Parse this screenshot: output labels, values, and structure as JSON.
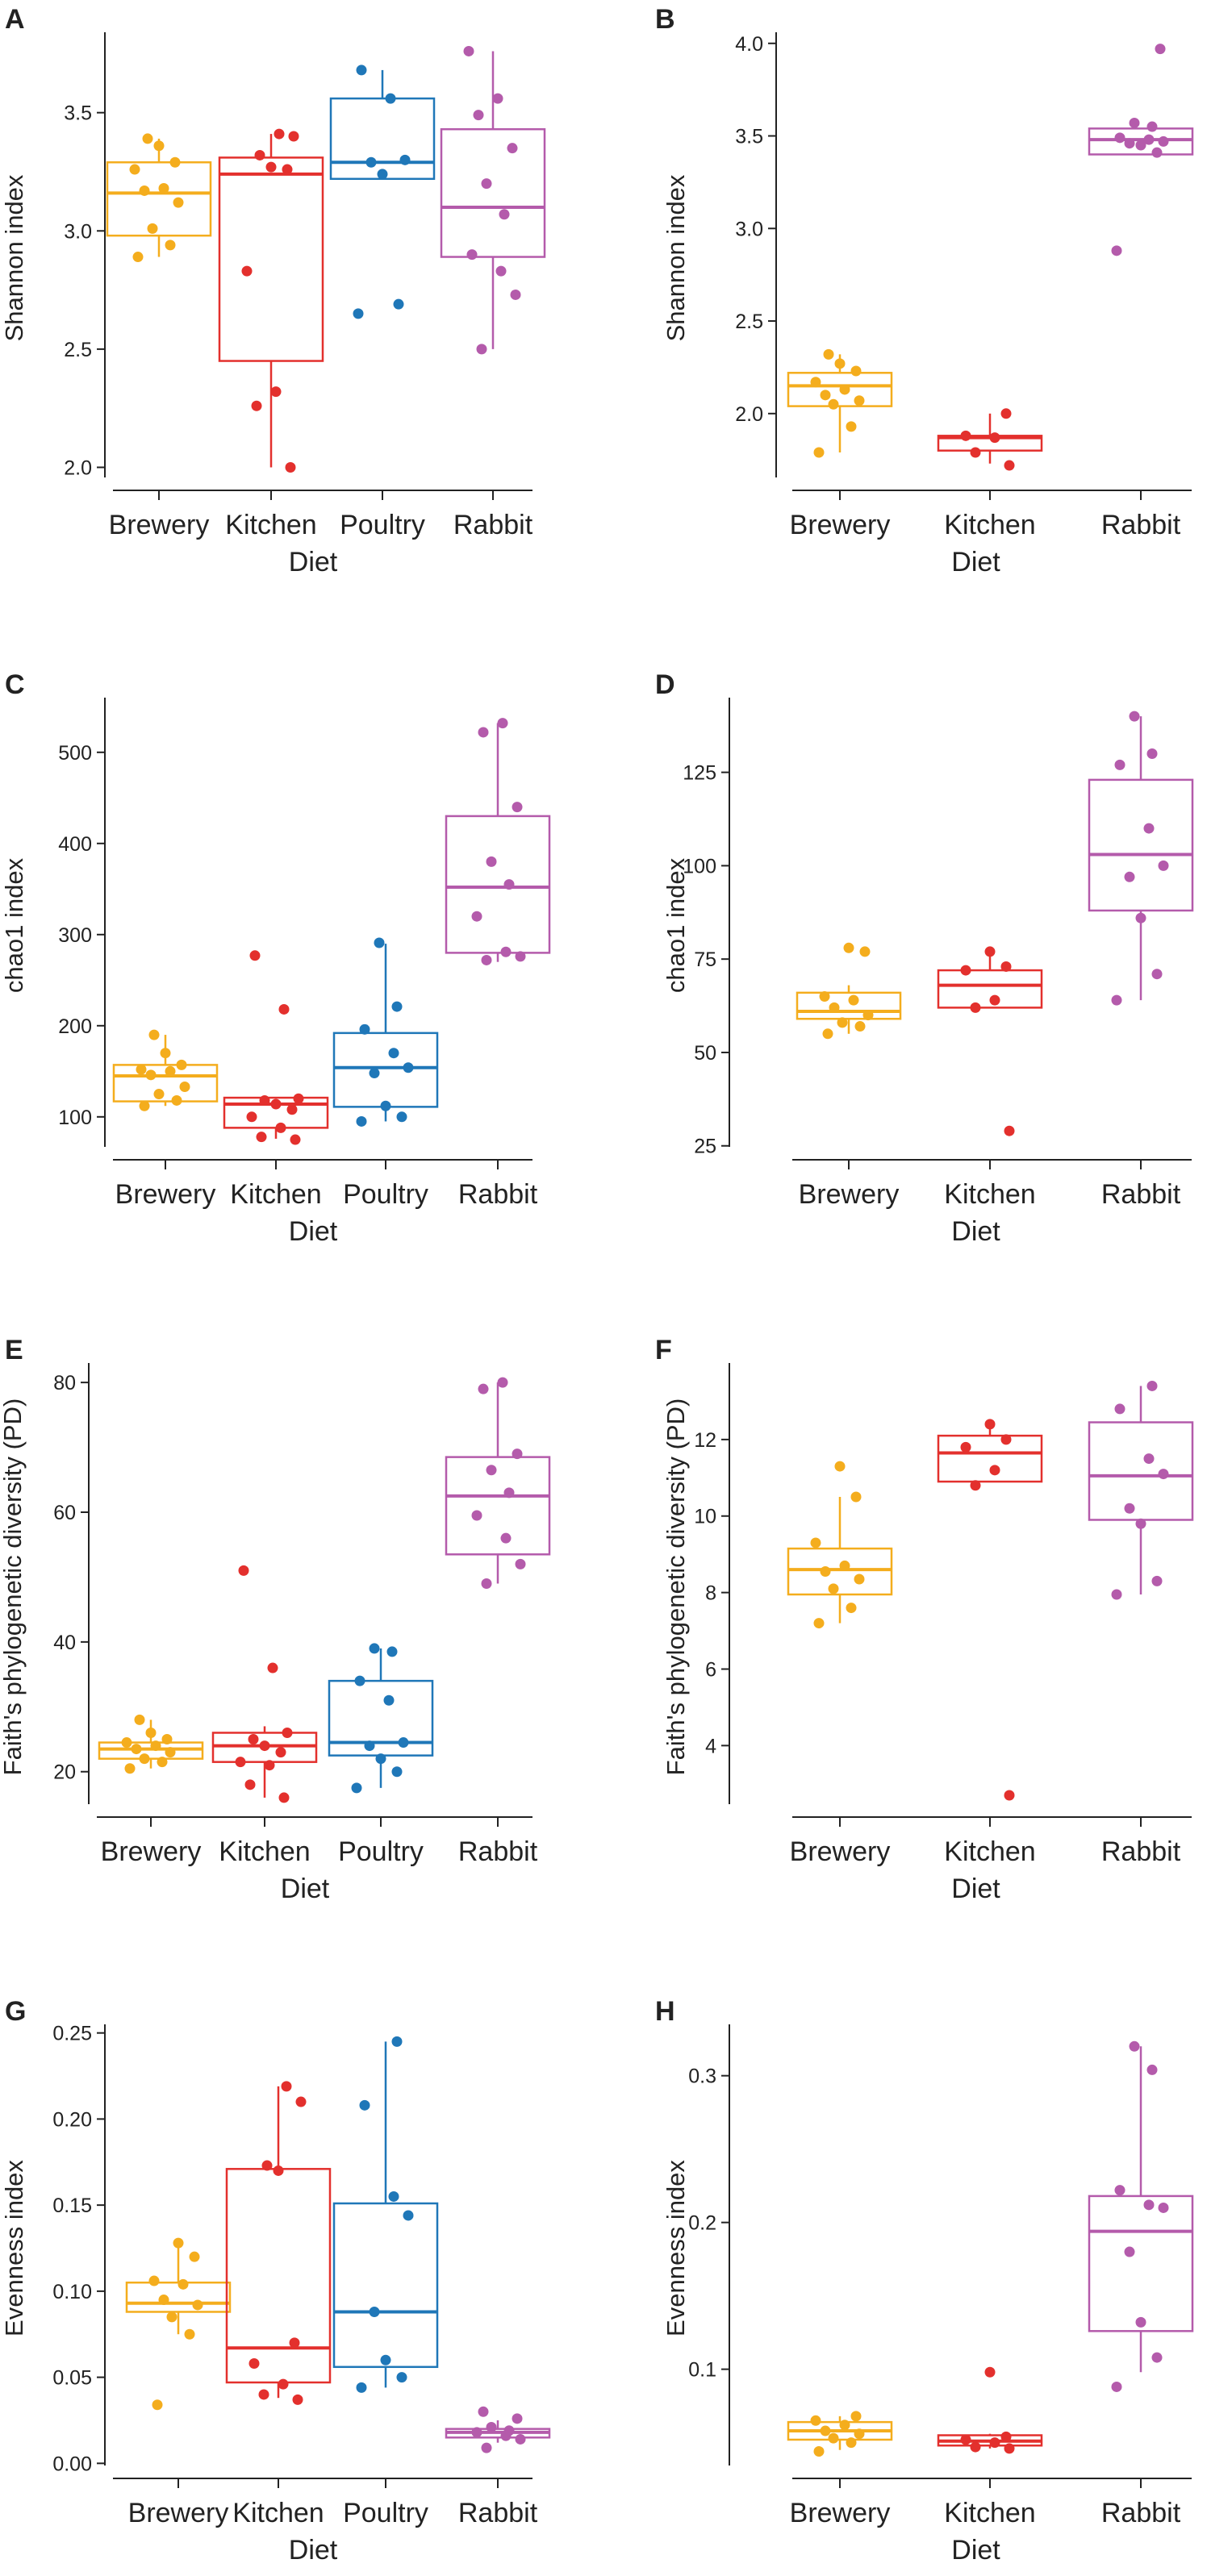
{
  "colors": {
    "Brewery": "#f4ad1d",
    "Kitchen": "#e3302d",
    "Poultry": "#1f77b8",
    "Rabbit": "#b45bab",
    "axis": "#222222"
  },
  "chart_data": [
    {
      "id": "A",
      "letter": "A",
      "type": "box",
      "title": "",
      "xlabel": "Diet",
      "ylabel": "Shannon index",
      "ylim": [
        1.93,
        3.84
      ],
      "yticks": [
        2.0,
        2.5,
        3.0,
        3.5
      ],
      "ytick_labels": [
        "2.0",
        "2.5",
        "3.0",
        "3.5"
      ],
      "categories": [
        "Brewery",
        "Kitchen",
        "Poultry",
        "Rabbit"
      ],
      "boxes": [
        {
          "group": "Brewery",
          "q1": 2.98,
          "median": 3.16,
          "q3": 3.29,
          "whisker_low": 2.89,
          "whisker_high": 3.39,
          "points": [
            2.89,
            2.94,
            3.01,
            3.12,
            3.17,
            3.18,
            3.26,
            3.29,
            3.36,
            3.39
          ]
        },
        {
          "group": "Kitchen",
          "q1": 2.45,
          "median": 3.24,
          "q3": 3.31,
          "whisker_low": 2.0,
          "whisker_high": 3.41,
          "points": [
            2.0,
            2.26,
            2.32,
            2.83,
            3.26,
            3.27,
            3.32,
            3.4,
            3.41
          ]
        },
        {
          "group": "Poultry",
          "q1": 3.22,
          "median": 3.29,
          "q3": 3.56,
          "whisker_low": 3.22,
          "whisker_high": 3.68,
          "points": [
            2.65,
            2.69,
            3.24,
            3.29,
            3.3,
            3.56,
            3.68
          ]
        },
        {
          "group": "Rabbit",
          "q1": 2.89,
          "median": 3.1,
          "q3": 3.43,
          "whisker_low": 2.5,
          "whisker_high": 3.76,
          "points": [
            2.5,
            2.73,
            2.83,
            2.9,
            3.07,
            3.2,
            3.35,
            3.49,
            3.56,
            3.76
          ]
        }
      ]
    },
    {
      "id": "B",
      "letter": "B",
      "type": "box",
      "title": "",
      "xlabel": "Diet",
      "ylabel": "Shannon index",
      "ylim": [
        1.62,
        4.06
      ],
      "yticks": [
        2.0,
        2.5,
        3.0,
        3.5,
        4.0
      ],
      "ytick_labels": [
        "2.0",
        "2.5",
        "3.0",
        "3.5",
        "4.0"
      ],
      "categories": [
        "Brewery",
        "Kitchen",
        "Rabbit"
      ],
      "boxes": [
        {
          "group": "Brewery",
          "q1": 2.04,
          "median": 2.15,
          "q3": 2.22,
          "whisker_low": 1.79,
          "whisker_high": 2.32,
          "points": [
            1.79,
            1.93,
            2.05,
            2.07,
            2.1,
            2.13,
            2.17,
            2.23,
            2.27,
            2.32
          ]
        },
        {
          "group": "Kitchen",
          "q1": 1.8,
          "median": 1.87,
          "q3": 1.88,
          "whisker_low": 1.73,
          "whisker_high": 2.0,
          "points": [
            1.72,
            1.79,
            1.87,
            1.88,
            2.0
          ]
        },
        {
          "group": "Rabbit",
          "q1": 3.4,
          "median": 3.48,
          "q3": 3.54,
          "whisker_low": 3.4,
          "whisker_high": 3.54,
          "points": [
            2.88,
            3.41,
            3.45,
            3.46,
            3.47,
            3.48,
            3.49,
            3.55,
            3.57,
            3.97
          ]
        }
      ]
    },
    {
      "id": "C",
      "letter": "C",
      "type": "box",
      "title": "",
      "xlabel": "Diet",
      "ylabel": "chao1 index",
      "ylim": [
        60,
        560
      ],
      "yticks": [
        100,
        200,
        300,
        400,
        500
      ],
      "ytick_labels": [
        "100",
        "200",
        "300",
        "400",
        "500"
      ],
      "categories": [
        "Brewery",
        "Kitchen",
        "Poultry",
        "Rabbit"
      ],
      "boxes": [
        {
          "group": "Brewery",
          "q1": 117,
          "median": 145,
          "q3": 157,
          "whisker_low": 112,
          "whisker_high": 190,
          "points": [
            112,
            118,
            125,
            133,
            146,
            150,
            152,
            157,
            170,
            190
          ]
        },
        {
          "group": "Kitchen",
          "q1": 88,
          "median": 114,
          "q3": 121,
          "whisker_low": 76,
          "whisker_high": 121,
          "points": [
            75,
            78,
            88,
            100,
            108,
            114,
            118,
            120,
            218,
            277
          ]
        },
        {
          "group": "Poultry",
          "q1": 111,
          "median": 154,
          "q3": 192,
          "whisker_low": 95,
          "whisker_high": 290,
          "points": [
            95,
            100,
            112,
            148,
            154,
            170,
            196,
            221,
            291
          ]
        },
        {
          "group": "Rabbit",
          "q1": 280,
          "median": 352,
          "q3": 430,
          "whisker_low": 270,
          "whisker_high": 532,
          "points": [
            272,
            276,
            281,
            320,
            355,
            380,
            440,
            522,
            532
          ]
        }
      ]
    },
    {
      "id": "D",
      "letter": "D",
      "type": "box",
      "title": "",
      "xlabel": "Diet",
      "ylabel": "chao1 index",
      "ylim": [
        23,
        145
      ],
      "yticks": [
        25,
        50,
        75,
        100,
        125
      ],
      "ytick_labels": [
        "25",
        "50",
        "75",
        "100",
        "125"
      ],
      "categories": [
        "Brewery",
        "Kitchen",
        "Rabbit"
      ],
      "boxes": [
        {
          "group": "Brewery",
          "q1": 59,
          "median": 61,
          "q3": 66,
          "whisker_low": 55,
          "whisker_high": 68,
          "points": [
            55,
            57,
            58,
            60,
            62,
            64,
            65,
            77,
            78
          ]
        },
        {
          "group": "Kitchen",
          "q1": 62,
          "median": 68,
          "q3": 72,
          "whisker_low": 62,
          "whisker_high": 77,
          "points": [
            29,
            62,
            64,
            72,
            73,
            77
          ]
        },
        {
          "group": "Rabbit",
          "q1": 88,
          "median": 103,
          "q3": 123,
          "whisker_low": 64,
          "whisker_high": 140,
          "points": [
            64,
            71,
            86,
            97,
            100,
            110,
            127,
            130,
            140
          ]
        }
      ]
    },
    {
      "id": "E",
      "letter": "E",
      "type": "box",
      "title": "",
      "xlabel": "Diet",
      "ylabel": "Faith's phylogenetic diversity (PD)",
      "ylim": [
        14,
        83
      ],
      "yticks": [
        20,
        40,
        60,
        80
      ],
      "ytick_labels": [
        "20",
        "40",
        "60",
        "80"
      ],
      "categories": [
        "Brewery",
        "Kitchen",
        "Poultry",
        "Rabbit"
      ],
      "boxes": [
        {
          "group": "Brewery",
          "q1": 22,
          "median": 23.5,
          "q3": 24.5,
          "whisker_low": 20.5,
          "whisker_high": 28,
          "points": [
            20.5,
            21.5,
            22,
            23,
            23.5,
            24,
            24.5,
            25,
            26,
            28
          ]
        },
        {
          "group": "Kitchen",
          "q1": 21.5,
          "median": 24,
          "q3": 26,
          "whisker_low": 16,
          "whisker_high": 27,
          "points": [
            16,
            18,
            21,
            21.5,
            23,
            24,
            25,
            26,
            36,
            51
          ]
        },
        {
          "group": "Poultry",
          "q1": 22.5,
          "median": 24.5,
          "q3": 34,
          "whisker_low": 17.5,
          "whisker_high": 39,
          "points": [
            17.5,
            20,
            22,
            24,
            24.5,
            31,
            34,
            38.5,
            39
          ]
        },
        {
          "group": "Rabbit",
          "q1": 53.5,
          "median": 62.5,
          "q3": 68.5,
          "whisker_low": 49,
          "whisker_high": 80,
          "points": [
            49,
            52,
            56,
            59.5,
            63,
            66.5,
            69,
            79,
            80
          ]
        }
      ]
    },
    {
      "id": "F",
      "letter": "F",
      "type": "box",
      "title": "",
      "xlabel": "Diet",
      "ylabel": "Faith's phylogenetic diversity (PD)",
      "ylim": [
        2.3,
        14.0
      ],
      "yticks": [
        4,
        6,
        8,
        10,
        12
      ],
      "ytick_labels": [
        "4",
        "6",
        "8",
        "10",
        "12"
      ],
      "categories": [
        "Brewery",
        "Kitchen",
        "Rabbit"
      ],
      "boxes": [
        {
          "group": "Brewery",
          "q1": 7.95,
          "median": 8.6,
          "q3": 9.15,
          "whisker_low": 7.2,
          "whisker_high": 10.5,
          "points": [
            7.2,
            7.6,
            8.1,
            8.35,
            8.55,
            8.7,
            9.3,
            10.5,
            11.3
          ]
        },
        {
          "group": "Kitchen",
          "q1": 10.9,
          "median": 11.65,
          "q3": 12.1,
          "whisker_low": 10.9,
          "whisker_high": 12.4,
          "points": [
            2.7,
            10.8,
            11.2,
            11.8,
            12.0,
            12.4
          ]
        },
        {
          "group": "Rabbit",
          "q1": 9.9,
          "median": 11.05,
          "q3": 12.45,
          "whisker_low": 7.95,
          "whisker_high": 13.4,
          "points": [
            7.95,
            8.3,
            9.8,
            10.2,
            11.1,
            11.5,
            12.8,
            13.4
          ]
        }
      ]
    },
    {
      "id": "G",
      "letter": "G",
      "type": "box",
      "title": "",
      "xlabel": "Diet",
      "ylabel": "Evenness index",
      "ylim": [
        -0.005,
        0.255
      ],
      "yticks": [
        0.0,
        0.05,
        0.1,
        0.15,
        0.2,
        0.25
      ],
      "ytick_labels": [
        "0.00",
        "0.05",
        "0.10",
        "0.15",
        "0.20",
        "0.25"
      ],
      "categories": [
        "Brewery",
        "Kitchen",
        "Poultry",
        "Rabbit"
      ],
      "boxes": [
        {
          "group": "Brewery",
          "q1": 0.088,
          "median": 0.093,
          "q3": 0.105,
          "whisker_low": 0.075,
          "whisker_high": 0.128,
          "points": [
            0.034,
            0.075,
            0.085,
            0.092,
            0.095,
            0.104,
            0.106,
            0.12,
            0.128
          ]
        },
        {
          "group": "Kitchen",
          "q1": 0.047,
          "median": 0.067,
          "q3": 0.171,
          "whisker_low": 0.038,
          "whisker_high": 0.219,
          "points": [
            0.037,
            0.04,
            0.046,
            0.058,
            0.07,
            0.17,
            0.173,
            0.21,
            0.219
          ]
        },
        {
          "group": "Poultry",
          "q1": 0.056,
          "median": 0.088,
          "q3": 0.151,
          "whisker_low": 0.044,
          "whisker_high": 0.245,
          "points": [
            0.044,
            0.05,
            0.06,
            0.088,
            0.144,
            0.155,
            0.208,
            0.245
          ]
        },
        {
          "group": "Rabbit",
          "q1": 0.015,
          "median": 0.018,
          "q3": 0.02,
          "whisker_low": 0.012,
          "whisker_high": 0.025,
          "points": [
            0.009,
            0.014,
            0.016,
            0.018,
            0.019,
            0.021,
            0.026,
            0.03
          ]
        }
      ]
    },
    {
      "id": "H",
      "letter": "H",
      "type": "box",
      "title": "",
      "xlabel": "Diet",
      "ylabel": "Evenness index",
      "ylim": [
        0.03,
        0.335
      ],
      "yticks": [
        0.1,
        0.2,
        0.3
      ],
      "ytick_labels": [
        "0.1",
        "0.2",
        "0.3"
      ],
      "categories": [
        "Brewery",
        "Kitchen",
        "Rabbit"
      ],
      "boxes": [
        {
          "group": "Brewery",
          "q1": 0.052,
          "median": 0.058,
          "q3": 0.064,
          "whisker_low": 0.045,
          "whisker_high": 0.068,
          "points": [
            0.044,
            0.05,
            0.053,
            0.056,
            0.058,
            0.062,
            0.065,
            0.068
          ]
        },
        {
          "group": "Kitchen",
          "q1": 0.048,
          "median": 0.051,
          "q3": 0.055,
          "whisker_low": 0.046,
          "whisker_high": 0.056,
          "points": [
            0.046,
            0.047,
            0.05,
            0.052,
            0.054,
            0.098
          ]
        },
        {
          "group": "Rabbit",
          "q1": 0.126,
          "median": 0.194,
          "q3": 0.218,
          "whisker_low": 0.098,
          "whisker_high": 0.32,
          "points": [
            0.088,
            0.108,
            0.132,
            0.18,
            0.21,
            0.212,
            0.222,
            0.304,
            0.32
          ]
        }
      ]
    }
  ]
}
